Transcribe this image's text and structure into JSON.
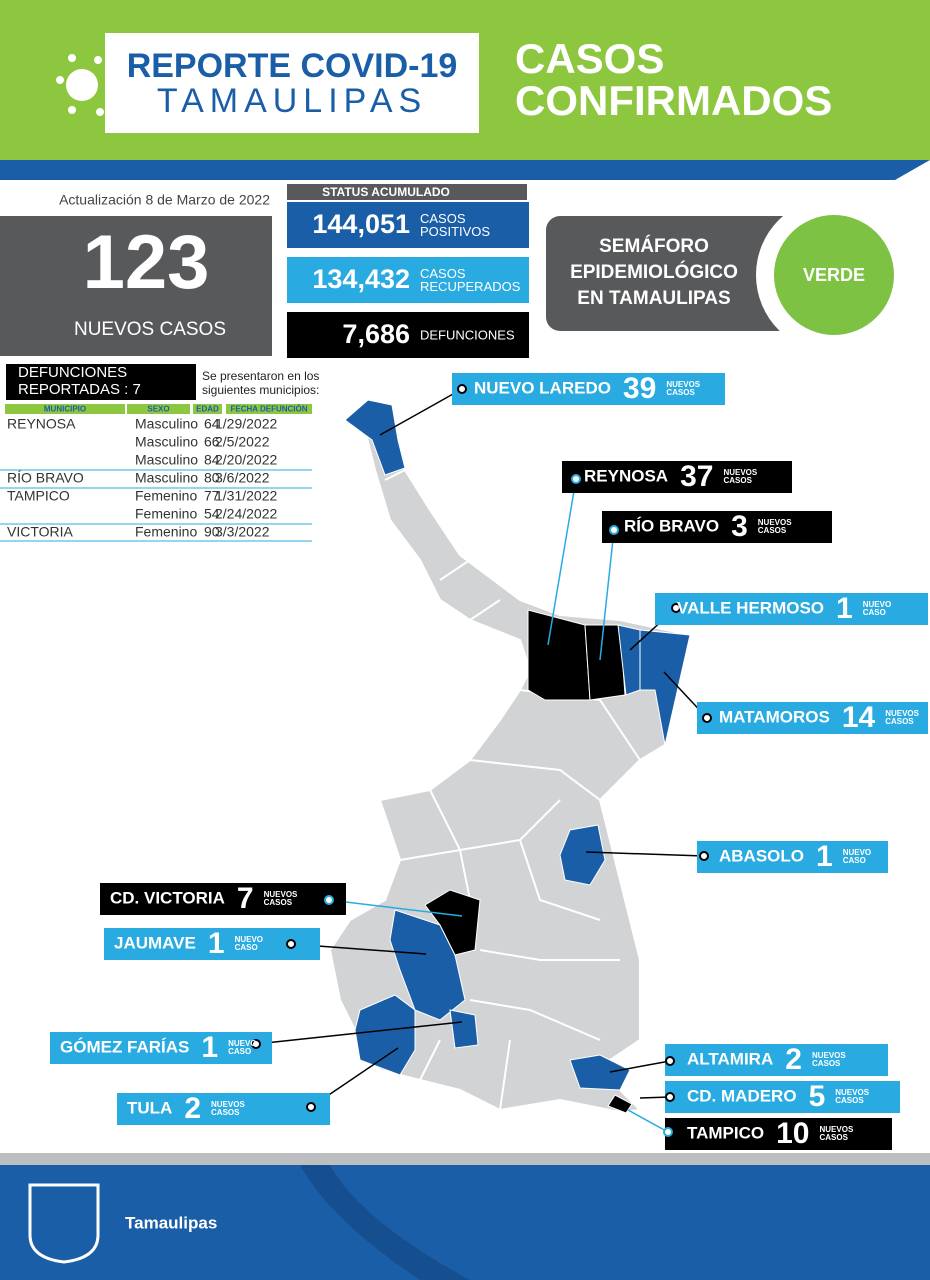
{
  "header": {
    "title_line1": "REPORTE COVID-19",
    "title_line2": "TAMAULIPAS",
    "section_line1": "CASOS",
    "section_line2": "CONFIRMADOS"
  },
  "update": "Actualización 8 de Marzo de 2022",
  "new_cases": {
    "value": "123",
    "label": "NUEVOS CASOS"
  },
  "status": {
    "title": "STATUS ACUMULADO",
    "items": [
      {
        "value": "144,051",
        "label_lines": [
          "CASOS",
          "POSITIVOS"
        ],
        "color": "#1b5ea8"
      },
      {
        "value": "134,432",
        "label_lines": [
          "CASOS",
          "RECUPERADOS"
        ],
        "color": "#29abe2"
      },
      {
        "value": "7,686",
        "label_lines": [
          "DEFUNCIONES"
        ],
        "color": "#000000"
      }
    ]
  },
  "semaforo": {
    "lines": [
      "SEMÁFORO",
      "EPIDEMIOLÓGICO",
      "EN TAMAULIPAS"
    ],
    "status": "VERDE",
    "color": "#7dc242"
  },
  "deaths": {
    "title_lines": [
      "DEFUNCIONES",
      "REPORTADAS : 7"
    ],
    "note_lines": [
      "Se presentaron en los",
      "siguientes municipios:"
    ],
    "columns": [
      "MUNICIPIO",
      "SEXO",
      "EDAD",
      "FECHA DEFUNCIÓN"
    ],
    "rows": [
      {
        "municipio": "REYNOSA",
        "sexo": "Masculino",
        "edad": 64,
        "fecha": "1/29/2022"
      },
      {
        "sexo": "Masculino",
        "edad": 66,
        "fecha": "2/5/2022"
      },
      {
        "sexo": "Masculino",
        "edad": 84,
        "fecha": "2/20/2022"
      },
      {
        "municipio": "RÍO BRAVO",
        "sexo": "Masculino",
        "edad": 80,
        "fecha": "3/6/2022"
      },
      {
        "municipio": "TAMPICO",
        "sexo": "Femenino",
        "edad": 77,
        "fecha": "1/31/2022"
      },
      {
        "sexo": "Femenino",
        "edad": 54,
        "fecha": "2/24/2022"
      },
      {
        "municipio": "VICTORIA",
        "sexo": "Femenino",
        "edad": 90,
        "fecha": "3/3/2022"
      }
    ]
  },
  "callouts": [
    {
      "name": "NUEVO LAREDO",
      "count": 39,
      "label_lines": [
        "NUEVOS",
        "CASOS"
      ],
      "color": "#29abe2"
    },
    {
      "name": "REYNOSA",
      "count": 37,
      "label_lines": [
        "NUEVOS",
        "CASOS"
      ],
      "color": "#000000"
    },
    {
      "name": "RÍO BRAVO",
      "count": 3,
      "label_lines": [
        "NUEVOS",
        "CASOS"
      ],
      "color": "#000000"
    },
    {
      "name": "VALLE HERMOSO",
      "count": 1,
      "label_lines": [
        "NUEVO",
        "CASO"
      ],
      "color": "#29abe2"
    },
    {
      "name": "MATAMOROS",
      "count": 14,
      "label_lines": [
        "NUEVOS",
        "CASOS"
      ],
      "color": "#29abe2"
    },
    {
      "name": "ABASOLO",
      "count": 1,
      "label_lines": [
        "NUEVO",
        "CASO"
      ],
      "color": "#29abe2"
    },
    {
      "name": "CD. VICTORIA",
      "count": 7,
      "label_lines": [
        "NUEVOS",
        "CASOS"
      ],
      "color": "#000000"
    },
    {
      "name": "JAUMAVE",
      "count": 1,
      "label_lines": [
        "NUEVO",
        "CASO"
      ],
      "color": "#29abe2"
    },
    {
      "name": "GÓMEZ FARÍAS",
      "count": 1,
      "label_lines": [
        "NUEVO",
        "CASO"
      ],
      "color": "#29abe2"
    },
    {
      "name": "TULA",
      "count": 2,
      "label_lines": [
        "NUEVOS",
        "CASOS"
      ],
      "color": "#29abe2"
    },
    {
      "name": "ALTAMIRA",
      "count": 2,
      "label_lines": [
        "NUEVOS",
        "CASOS"
      ],
      "color": "#29abe2"
    },
    {
      "name": "CD. MADERO",
      "count": 5,
      "label_lines": [
        "NUEVOS",
        "CASOS"
      ],
      "color": "#29abe2"
    },
    {
      "name": "TAMPICO",
      "count": 10,
      "label_lines": [
        "NUEVOS",
        "CASOS"
      ],
      "color": "#000000"
    }
  ],
  "footer": {
    "brand": "Tamaulipas"
  }
}
